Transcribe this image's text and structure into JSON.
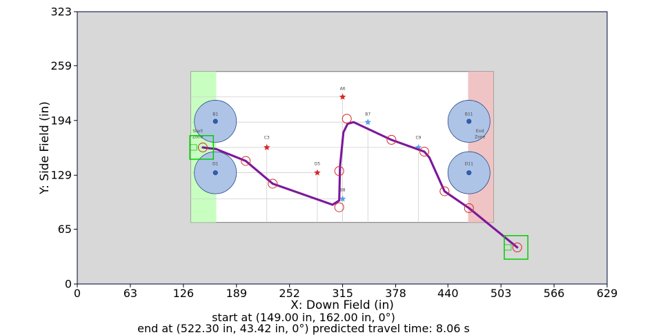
{
  "chart_data": {
    "type": "line",
    "xlabel": "X: Down Field (in)",
    "ylabel": "Y: Side Field (in)",
    "xlim": [
      0,
      629
    ],
    "ylim": [
      0,
      323
    ],
    "xticks": [
      "0",
      "63",
      "126",
      "189",
      "252",
      "315",
      "378",
      "440",
      "503",
      "566",
      "629"
    ],
    "yticks": [
      "0",
      "65",
      "129",
      "194",
      "259",
      "323"
    ],
    "grid": false,
    "background_color": "#d8d8d8",
    "path_color": "#8e1c9c",
    "start_box_color": "#00cc00",
    "waypoint_color": "#d62728",
    "field_image": {
      "extent_x": [
        135,
        494
      ],
      "extent_y": [
        73,
        252
      ],
      "start_zone_x": [
        135,
        165
      ],
      "end_zone_x": [
        464,
        494
      ],
      "start_zone_color": "#c8ffc0",
      "end_zone_color": "#f0c4c4",
      "labels": [
        {
          "text": "B1",
          "x": 164,
          "y": 200
        },
        {
          "text": "D1",
          "x": 164,
          "y": 141
        },
        {
          "text": "B11",
          "x": 465,
          "y": 200
        },
        {
          "text": "D11",
          "x": 465,
          "y": 141
        },
        {
          "text": "C3",
          "x": 225,
          "y": 172
        },
        {
          "text": "D5",
          "x": 285,
          "y": 141
        },
        {
          "text": "A6",
          "x": 315,
          "y": 230
        },
        {
          "text": "B7",
          "x": 345,
          "y": 200
        },
        {
          "text": "B8",
          "x": 315,
          "y": 110
        },
        {
          "text": "C9",
          "x": 405,
          "y": 172
        },
        {
          "text": "Start",
          "x": 143,
          "y": 180
        },
        {
          "text": "Zone",
          "x": 143,
          "y": 173
        },
        {
          "text": "End",
          "x": 478,
          "y": 180
        },
        {
          "text": "Zone",
          "x": 478,
          "y": 173
        }
      ],
      "obstacles": [
        {
          "name": "B1",
          "x": 164,
          "y": 193
        },
        {
          "name": "D1",
          "x": 164,
          "y": 132
        },
        {
          "name": "B11",
          "x": 465,
          "y": 193
        },
        {
          "name": "D11",
          "x": 465,
          "y": 132
        }
      ],
      "stars": [
        {
          "name": "A6",
          "x": 315,
          "y": 222,
          "color": "#d62728"
        },
        {
          "name": "B7",
          "x": 345,
          "y": 192,
          "color": "#5aa0e8"
        },
        {
          "name": "C3",
          "x": 225,
          "y": 162,
          "color": "#d62728"
        },
        {
          "name": "D5",
          "x": 285,
          "y": 132,
          "color": "#d62728"
        },
        {
          "name": "B8",
          "x": 315,
          "y": 101,
          "color": "#5aa0e8"
        },
        {
          "name": "C9",
          "x": 405,
          "y": 162,
          "color": "#5aa0e8"
        }
      ]
    },
    "waypoints": [
      {
        "x": 149,
        "y": 162
      },
      {
        "x": 200,
        "y": 146
      },
      {
        "x": 232,
        "y": 119
      },
      {
        "x": 311,
        "y": 91
      },
      {
        "x": 311,
        "y": 134
      },
      {
        "x": 320,
        "y": 196
      },
      {
        "x": 373,
        "y": 171
      },
      {
        "x": 412,
        "y": 157
      },
      {
        "x": 436,
        "y": 110
      },
      {
        "x": 465,
        "y": 90
      },
      {
        "x": 522.3,
        "y": 43.42
      }
    ],
    "path": [
      {
        "x": 149,
        "y": 162
      },
      {
        "x": 165,
        "y": 160
      },
      {
        "x": 200,
        "y": 146
      },
      {
        "x": 232,
        "y": 119
      },
      {
        "x": 303,
        "y": 94
      },
      {
        "x": 311,
        "y": 99
      },
      {
        "x": 312,
        "y": 140
      },
      {
        "x": 316,
        "y": 180
      },
      {
        "x": 321,
        "y": 190
      },
      {
        "x": 328,
        "y": 192
      },
      {
        "x": 373,
        "y": 171
      },
      {
        "x": 412,
        "y": 157
      },
      {
        "x": 418,
        "y": 150
      },
      {
        "x": 436,
        "y": 110
      },
      {
        "x": 465,
        "y": 90
      },
      {
        "x": 522.3,
        "y": 43.42
      }
    ],
    "start_pose": {
      "x": 149,
      "y": 162
    },
    "end_pose": {
      "x": 522.3,
      "y": 43.42
    }
  },
  "caption": {
    "start_text": "start at (149.00 in, 162.00 in, 0°)",
    "end_text": "end at (522.30 in, 43.42 in, 0°) predicted travel time: 8.06 s"
  }
}
